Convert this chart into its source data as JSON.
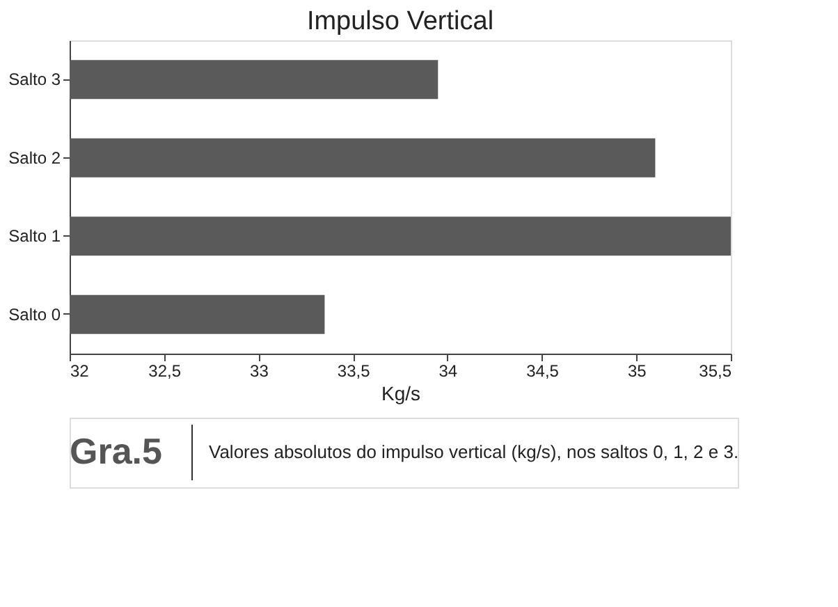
{
  "chart_data": {
    "type": "bar",
    "orientation": "horizontal",
    "title": "Impulso Vertical",
    "xlabel": "Kg/s",
    "categories": [
      "Salto 3",
      "Salto 2",
      "Salto 1",
      "Salto 0"
    ],
    "values": [
      33.95,
      35.1,
      35.5,
      33.35
    ],
    "color": "#5a5a5a",
    "xlim": [
      32,
      35.5
    ],
    "xticks": [
      32,
      {
        "value": 32.5,
        "label": "32,5"
      },
      33,
      {
        "value": 33.5,
        "label": "33,5"
      },
      34,
      {
        "value": 34.5,
        "label": "34,5"
      },
      35,
      {
        "value": 35.5,
        "label": "35,5"
      }
    ],
    "grid": false,
    "annotations": [
      "Gra.5",
      "Valores absolutos do impulso vertical (kg/s), nos saltos 0, 1, 2 e 3."
    ]
  }
}
